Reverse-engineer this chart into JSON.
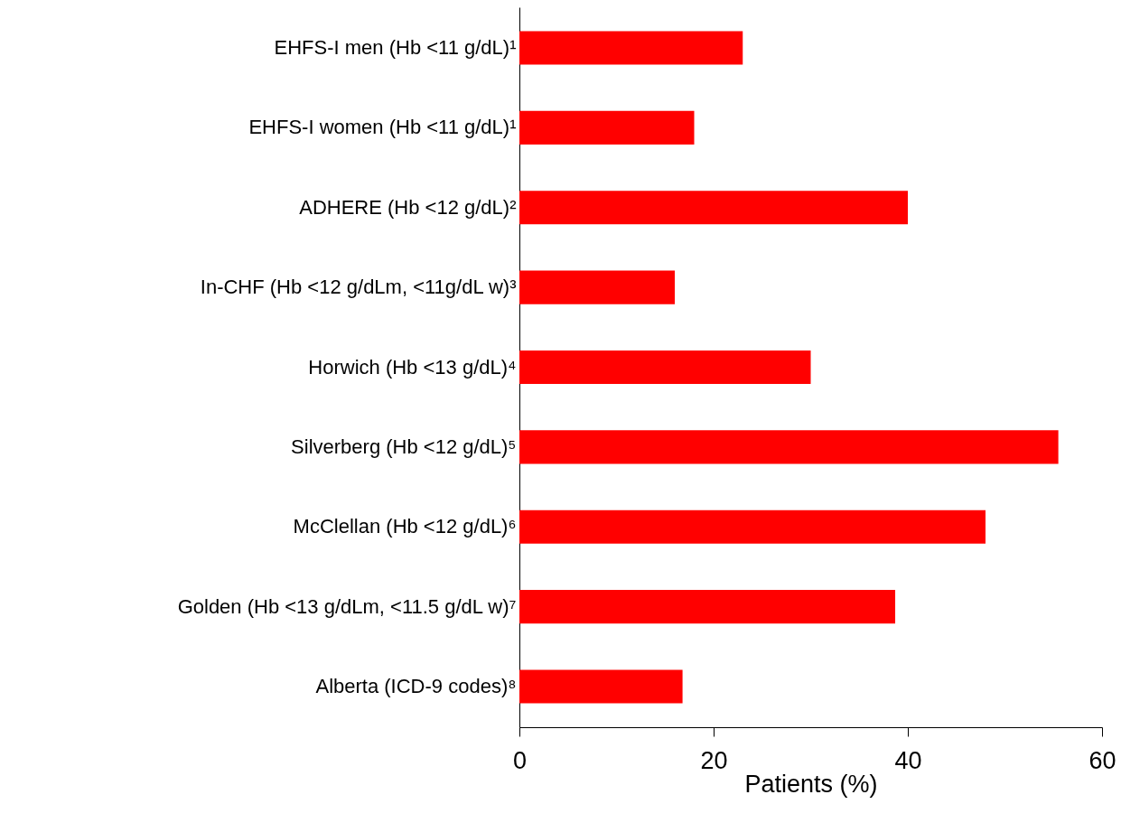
{
  "chart_data": {
    "type": "bar",
    "orientation": "horizontal",
    "xlabel": "Patients (%)",
    "categories": [
      "EHFS-I men (Hb <11 g/dL)¹",
      "EHFS-I women (Hb <11 g/dL)¹",
      "ADHERE (Hb <12 g/dL)²",
      "In-CHF (Hb <12 g/dLm, <11g/dL w)³",
      "Horwich (Hb <13 g/dL)⁴",
      "Silverberg (Hb <12 g/dL)⁵",
      "McClellan (Hb <12 g/dL)⁶",
      "Golden (Hb <13 g/dLm, <11.5 g/dL w)⁷",
      "Alberta (ICD-9 codes)⁸"
    ],
    "values": [
      23,
      18,
      40,
      16,
      30,
      55.5,
      48,
      38.7,
      16.8
    ],
    "color": "#ff0000",
    "xlim": [
      0,
      60
    ],
    "xticks": [
      0,
      20,
      40,
      60
    ],
    "grid": false
  }
}
